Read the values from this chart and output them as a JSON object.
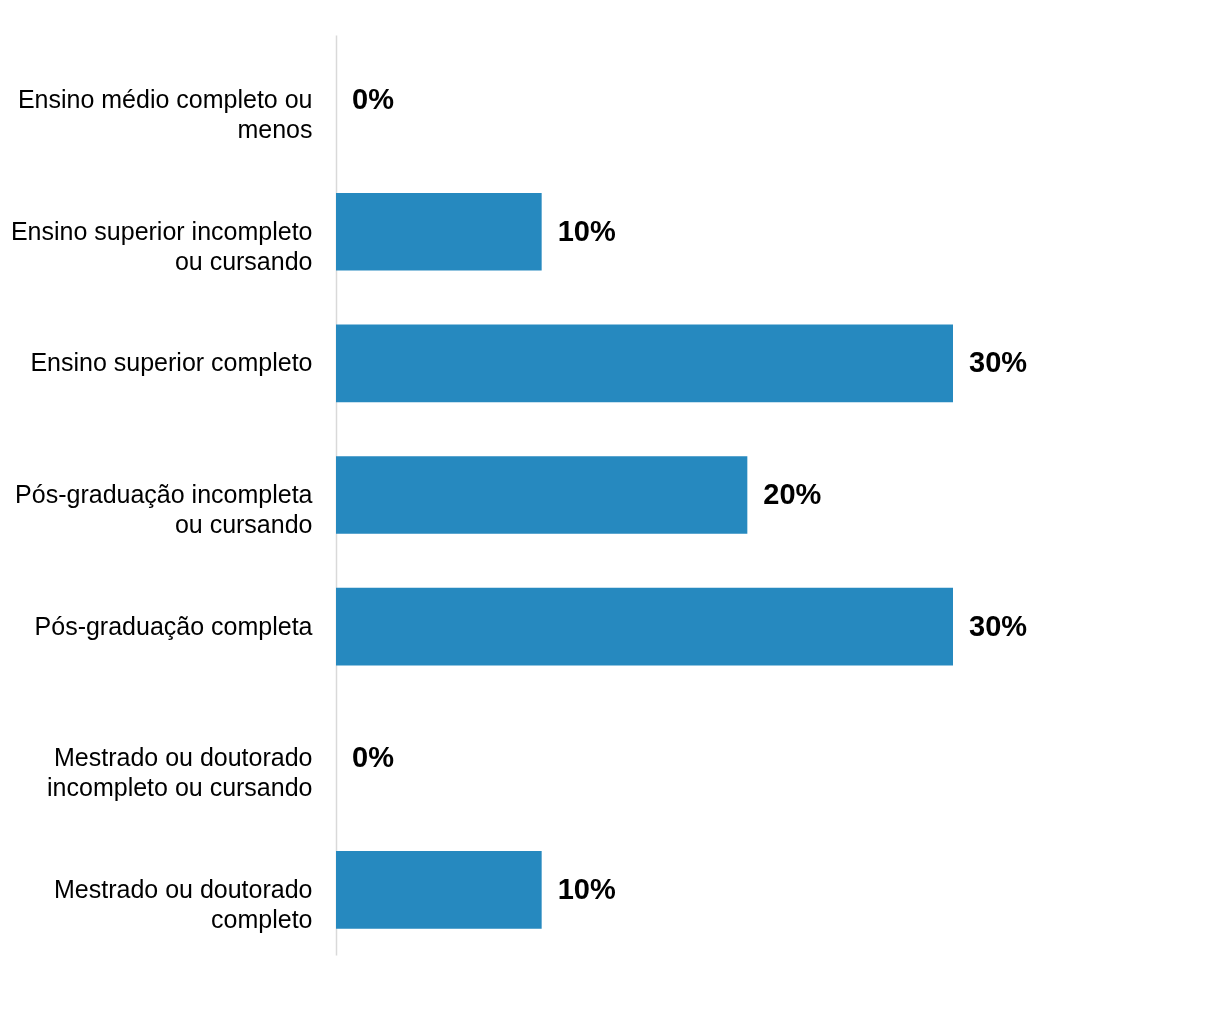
{
  "chart_data": {
    "type": "bar",
    "orientation": "horizontal",
    "data_labels": true,
    "categories": [
      "Ensino médio completo ou menos",
      "Ensino superior incompleto ou cursando",
      "Ensino superior completo",
      "Pós-graduação incompleta ou cursando",
      "Pós-graduação completa",
      "Mestrado ou doutorado incompleto ou cursando",
      "Mestrado ou doutorado completo"
    ],
    "values": [
      0,
      10,
      30,
      20,
      30,
      0,
      10
    ],
    "value_labels": [
      "0%",
      "10%",
      "30%",
      "20%",
      "30%",
      "0%",
      "10%"
    ],
    "color": "#2689bf"
  }
}
